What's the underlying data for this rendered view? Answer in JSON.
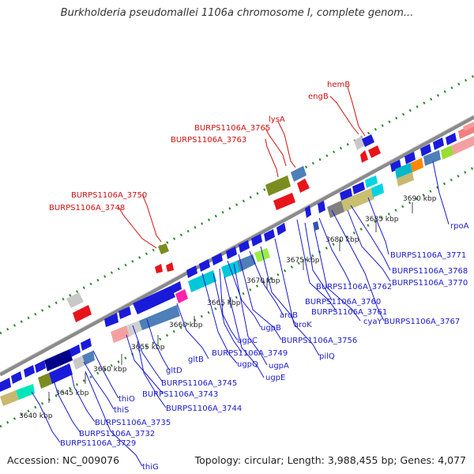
{
  "title": "Burkholderia pseudomallei 1106a chromosome I, complete genom...",
  "footer": {
    "accession": "Accession: NC_009076",
    "summary": "Topology: circular; Length: 3,988,455 bp; Genes: 4,077"
  },
  "ticks": [
    "3640 kbp",
    "3645 kbp",
    "3650 kbp",
    "3655 kbp",
    "3660 kbp",
    "3665 kbp",
    "3670 kbp",
    "3675 kbp",
    "3680 kbp",
    "3685 kbp",
    "3690 kbp"
  ],
  "labels_red": [
    "hemB",
    "engB",
    "lysA",
    "BURPS1106A_3765",
    "BURPS1106A_3763",
    "BURPS1106A_3750",
    "BURPS1106A_3748"
  ],
  "labels_blue": [
    "rpoA",
    "BURPS1106A_3771",
    "BURPS1106A_3768",
    "BURPS1106A_3770",
    "BURPS1106A_3762",
    "BURPS1106A_3760",
    "BURPS1106A_3761",
    "BURPS1106A_3767",
    "cyaY",
    "aroK",
    "aroB",
    "pilQ",
    "BURPS1106A_3756",
    "ugpB",
    "ugpC",
    "BURPS1106A_3749",
    "ugpQ",
    "ugpA",
    "ugpE",
    "gltB",
    "gltD",
    "BURPS1106A_3745",
    "BURPS1106A_3743",
    "BURPS1106A_3744",
    "thiO",
    "thiS",
    "BURPS1106A_3735",
    "BURPS1106A_3732",
    "BURPS1106A_3729",
    "thiG"
  ],
  "colors": {
    "forward": "#1a1adb",
    "reverse": "#e8141a",
    "backbone": "#808080",
    "ticks": "#2e8b2e",
    "label_red": "#cc1111",
    "label_blue": "#1a1acc"
  }
}
